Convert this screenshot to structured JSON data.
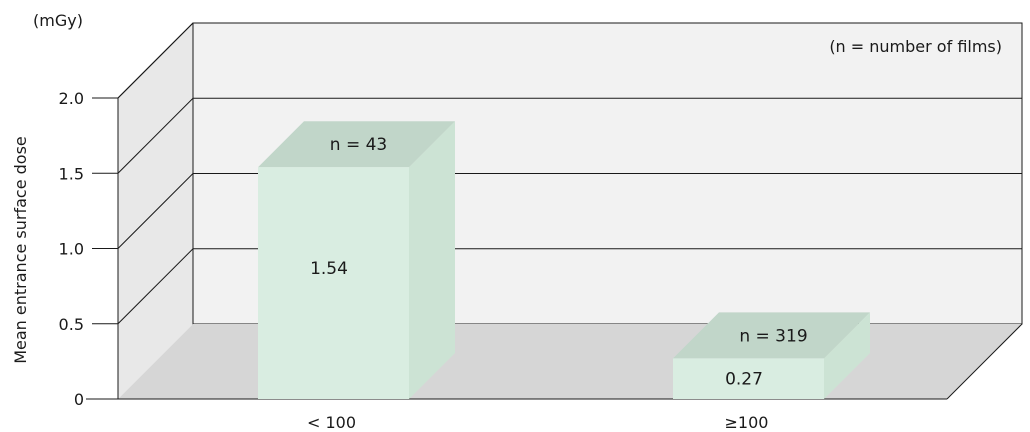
{
  "chart_data": {
    "type": "bar",
    "subtype": "3d-bar",
    "categories": [
      "< 100",
      "≥100"
    ],
    "values": [
      1.54,
      0.27
    ],
    "value_labels": [
      "1.54",
      "0.27"
    ],
    "count_labels": [
      "n = 43",
      "n = 319"
    ],
    "ylabel": "Mean entrance surface dose",
    "yunit": "(mGy)",
    "annotation": "(n = number of films)",
    "ylim": [
      0,
      2.0
    ],
    "yticks": [
      0,
      0.5,
      1.0,
      1.5,
      2.0
    ],
    "ytick_labels": [
      "0",
      "0.5",
      "1.0",
      "1.5",
      "2.0"
    ],
    "grid": true,
    "colors": {
      "bar_front": "#d9ede1",
      "bar_top": "#c1d6c9",
      "bar_side": "#cce3d4",
      "back_wall": "#f2f2f2",
      "side_wall": "#e8e8e8",
      "floor": "#d6d6d6",
      "grid": "#1a1a1a"
    }
  }
}
